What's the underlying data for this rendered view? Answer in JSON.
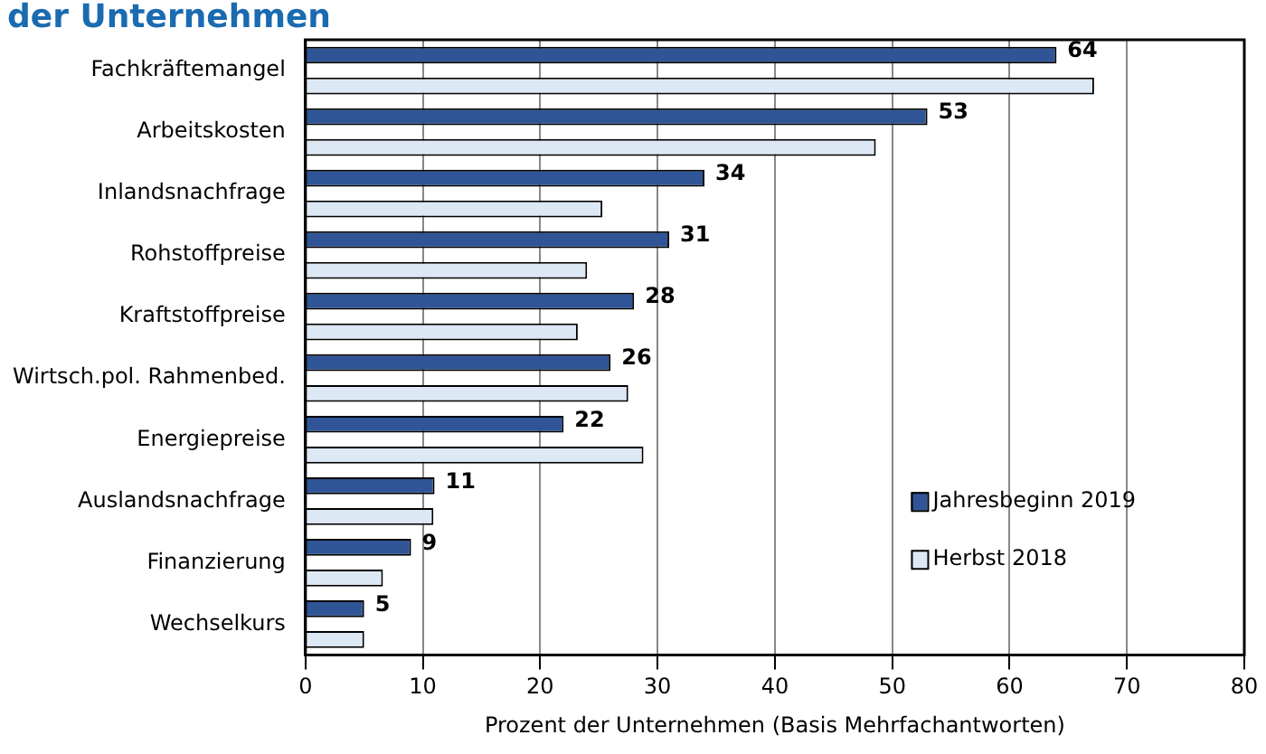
{
  "chart_data": {
    "type": "bar",
    "orientation": "horizontal",
    "title": "der Unternehmen",
    "xlabel": "Prozent der Unternehmen (Basis Mehrfachantworten)",
    "categories": [
      "Fachkräftemangel",
      "Arbeitskosten",
      "Inlandsnachfrage",
      "Rohstoffpreise",
      "Kraftstoffpreise",
      "Wirtsch.pol. Rahmenbed.",
      "Energiepreise",
      "Auslandsnachfrage",
      "Finanzierung",
      "Wechselkurs"
    ],
    "series": [
      {
        "name": "Jahresbeginn 2019",
        "color": "#2f5597",
        "values": [
          64,
          53,
          34,
          31,
          28,
          26,
          22,
          11,
          9,
          5
        ],
        "value_labels": [
          "64",
          "53",
          "34",
          "31",
          "28",
          "26",
          "22",
          "11",
          "9",
          "5"
        ]
      },
      {
        "name": "Herbst 2018",
        "color": "#dde8f5",
        "values": [
          67.2,
          48.6,
          25.3,
          24,
          23.2,
          27.5,
          28.8,
          10.9,
          6.6,
          5
        ]
      }
    ],
    "xlim": [
      0,
      80
    ],
    "xticks": [
      0,
      10,
      20,
      30,
      40,
      50,
      60,
      70,
      80
    ],
    "grid": "x",
    "legend": "right"
  }
}
